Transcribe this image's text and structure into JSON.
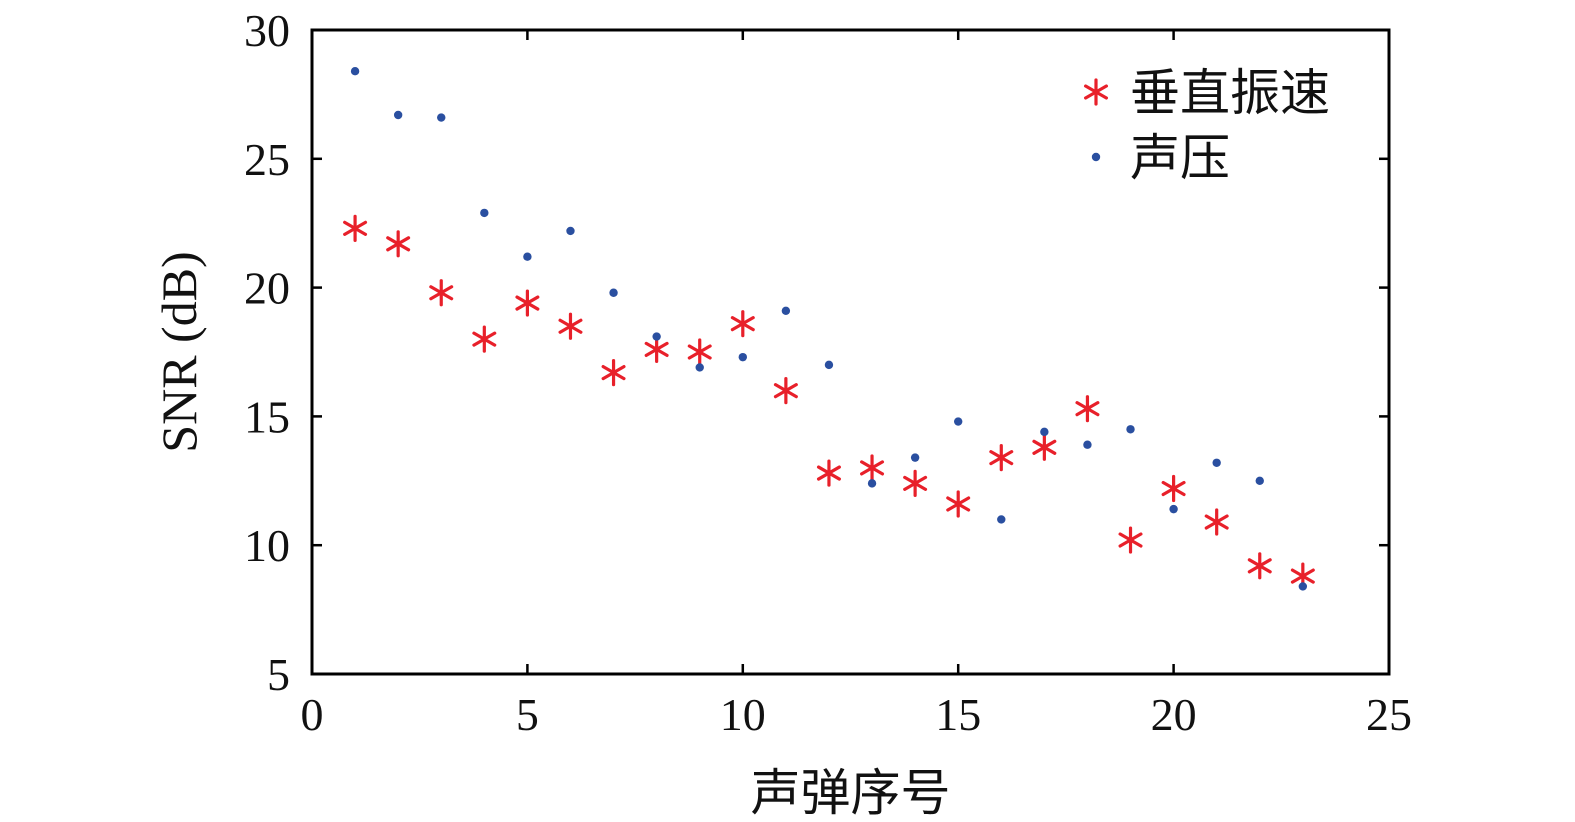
{
  "chart_data": {
    "type": "scatter",
    "title": "",
    "xlabel": "声弹序号",
    "ylabel": "SNR (dB)",
    "xlim": [
      0,
      25
    ],
    "ylim": [
      5,
      30
    ],
    "x_ticks": [
      0,
      5,
      10,
      15,
      20,
      25
    ],
    "y_ticks": [
      5,
      10,
      15,
      20,
      25,
      30
    ],
    "x_tick_labels": [
      "0",
      "5",
      "10",
      "15",
      "20",
      "25"
    ],
    "y_tick_labels": [
      "5",
      "10",
      "15",
      "20",
      "25",
      "30"
    ],
    "grid": false,
    "legend_position": "top-right",
    "series": [
      {
        "name": "垂直振速",
        "marker": "asterisk",
        "color": "#e8202a",
        "x": [
          1,
          2,
          3,
          4,
          5,
          6,
          7,
          8,
          9,
          10,
          11,
          12,
          13,
          14,
          15,
          16,
          17,
          18,
          19,
          20,
          21,
          22,
          23
        ],
        "y": [
          22.3,
          21.7,
          19.8,
          18.0,
          19.4,
          18.5,
          16.7,
          17.6,
          17.5,
          18.6,
          16.0,
          12.8,
          13.0,
          12.4,
          11.6,
          13.4,
          13.8,
          15.3,
          10.2,
          12.2,
          10.9,
          9.2,
          8.8
        ]
      },
      {
        "name": "声压",
        "marker": "dot",
        "color": "#2a4fa0",
        "x": [
          1,
          2,
          3,
          4,
          5,
          6,
          7,
          8,
          9,
          10,
          11,
          12,
          13,
          14,
          15,
          16,
          17,
          18,
          19,
          20,
          21,
          22,
          23
        ],
        "y": [
          28.4,
          26.7,
          26.6,
          22.9,
          21.2,
          22.2,
          19.8,
          18.1,
          16.9,
          17.3,
          19.1,
          17.0,
          12.4,
          13.4,
          14.8,
          11.0,
          14.4,
          13.9,
          14.5,
          11.4,
          13.2,
          12.5,
          8.4
        ]
      }
    ]
  }
}
